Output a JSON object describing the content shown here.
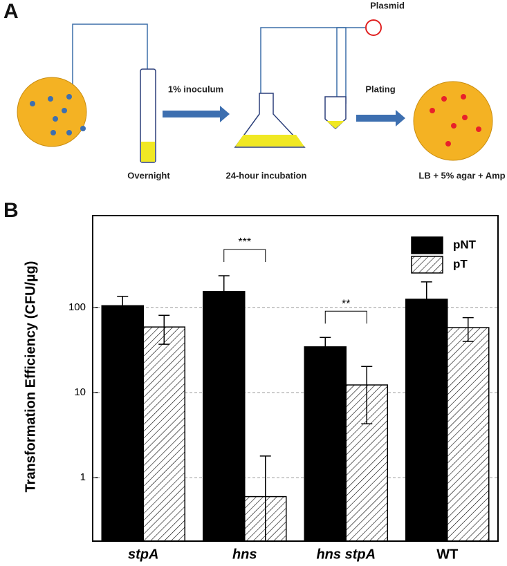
{
  "panel_a": {
    "label": "A",
    "plasmid": "Plasmid",
    "step1": "1% inoculum",
    "step2": "Plating",
    "caption1": "Overnight",
    "caption2": "24-hour incubation",
    "caption3": "LB + 5% agar + Amp"
  },
  "chart_data": {
    "type": "bar",
    "label": "B",
    "y_label": "Transformation Efficiency (CFU/µg)",
    "categories": [
      "stpA",
      "hns",
      "hns stpA",
      "WT"
    ],
    "category_font_style": [
      "italic",
      "italic",
      "italic",
      "normal"
    ],
    "series": [
      {
        "name": "pNT",
        "color": "#000000",
        "fill": "solid",
        "values": [
          105,
          154,
          34.5,
          125
        ],
        "errors": [
          30,
          82,
          10,
          75
        ]
      },
      {
        "name": "pT",
        "color": "#000000",
        "fill": "hatch",
        "values": [
          59,
          0.6,
          12.3,
          58
        ],
        "errors": [
          22,
          1.2,
          8,
          18
        ]
      }
    ],
    "annotations": [
      "***",
      "**"
    ],
    "log_scale": true,
    "ylim": [
      0.18,
      1200
    ],
    "yticks": [
      1,
      10,
      100
    ],
    "grid": true,
    "legend": "upper right"
  }
}
